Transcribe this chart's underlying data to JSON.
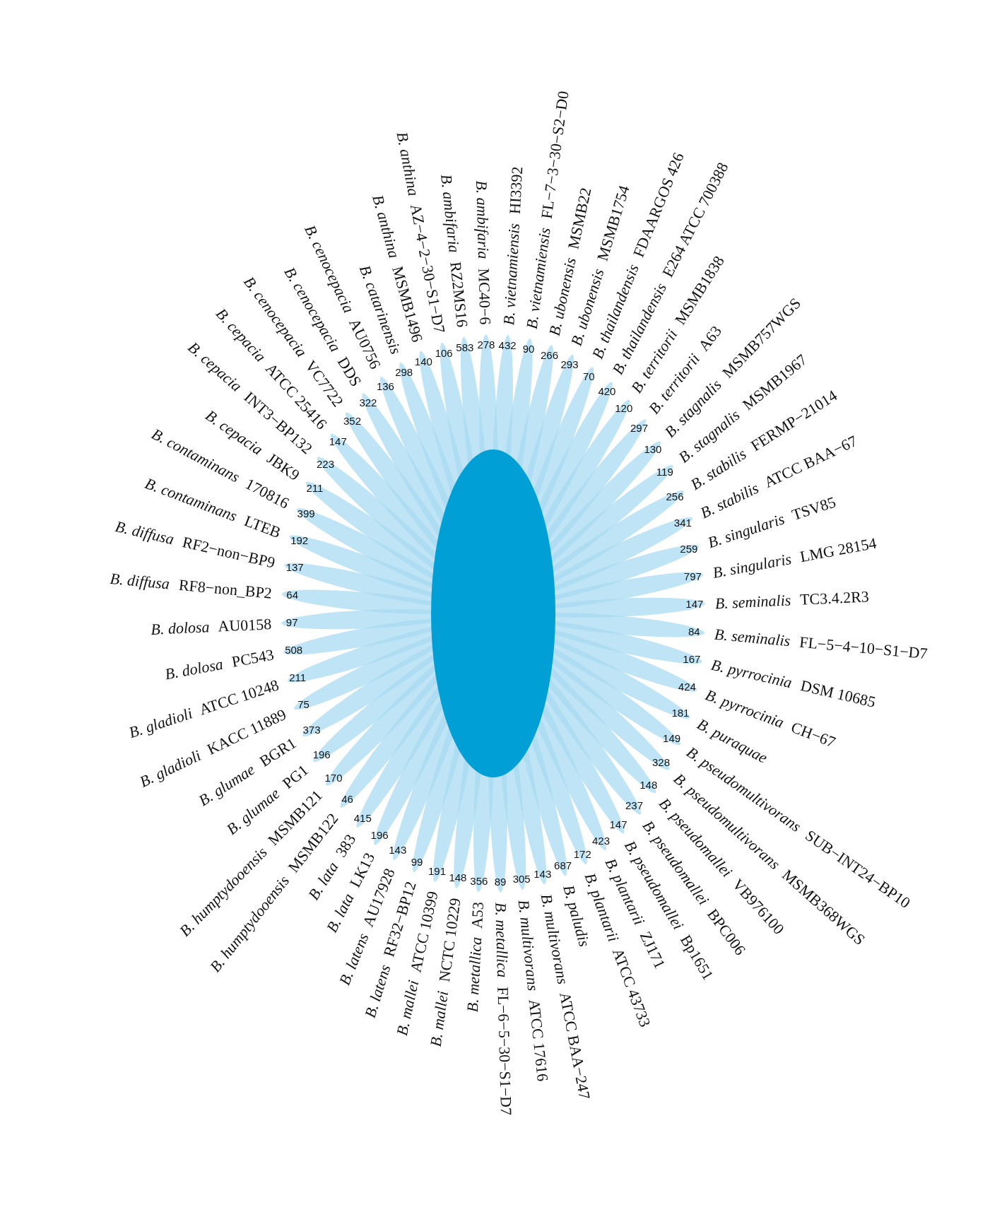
{
  "chart_data": {
    "type": "other",
    "color": "#a8dbf2",
    "data_labels": true,
    "categories": [
      "B. ambifaria MC40−6",
      "B. vietnamiensis HI3392",
      "B. vietnamiensis FL−7−3−30−S2−D0",
      "B. ubonensis MSMB22",
      "B. ubonensis MSMB1754",
      "B. thailandensis FDAARGOS 426",
      "B. thailandensis E264 ATCC 700388",
      "B. territorii MSMB1838",
      "B. territorii A63",
      "B. stagnalis MSMB757WGS",
      "B. stagnalis MSMB1967",
      "B. stabilis FERMP−21014",
      "B. stabilis ATCC BAA−67",
      "B. singularis TSV85",
      "B. singularis LMG 28154",
      "B. seminalis TC3.4.2R3",
      "B. seminalis FL−5−4−10−S1−D7",
      "B. pyrrocinia DSM 10685",
      "B. pyrrocinia CH−67",
      "B. puraquae",
      "B. pseudomultivorans SUB−INT24−BP10",
      "B. pseudomultivorans MSMB368WGS",
      "B. pseudomallei VB976100",
      "B. pseudomallei BPC006",
      "B. pseudomallei Bp1651",
      "B. plantarii ZJ171",
      "B. plantarii ATCC 43733",
      "B. paludis",
      "B. multivorans ATCC BAA−247",
      "B. multivorans ATCC 17616",
      "B. metallica FL−6−5−30−S1−D7",
      "B. metallica A53",
      "B. mallei NCTC 10229",
      "B. mallei ATCC 10399",
      "B. latens RF32−BP12",
      "B. latens AU17928",
      "B. lata LK13",
      "B. lata 383",
      "B. humptydooensis MSMB122",
      "B. humptydooensis MSMB121",
      "B. glumae PG1",
      "B. glumae BGR1",
      "B. gladioli KACC 11889",
      "B. gladioli ATCC 10248",
      "B. dolosa PC543",
      "B. dolosa AU0158",
      "B. diffusa RF8−non_BP2",
      "B. diffusa RF2−non−BP9",
      "B. contaminans LTEB",
      "B. contaminans 170816",
      "B. cepacia JBK9",
      "B. cepacia INT3−BP132",
      "B. cepacia ATCC 25416",
      "B. cenocepacia VC7722",
      "B. cenocepacia DDS",
      "B. cenocepacia AU0756",
      "B. catarinensis",
      "B. anthina MSMB1496",
      "B. anthina AZ−4−2−30−S1−D7",
      "B. ambifaria RZ2MS16"
    ],
    "values": [
      278,
      432,
      90,
      266,
      293,
      70,
      420,
      120,
      297,
      130,
      119,
      256,
      341,
      259,
      797,
      147,
      84,
      167,
      424,
      181,
      149,
      328,
      148,
      237,
      147,
      423,
      172,
      687,
      143,
      305,
      89,
      356,
      148,
      191,
      99,
      143,
      196,
      415,
      46,
      170,
      196,
      373,
      75,
      211,
      508,
      97,
      64,
      137,
      192,
      399,
      211,
      223,
      147,
      352,
      322,
      136,
      298,
      140,
      106,
      583
    ]
  }
}
